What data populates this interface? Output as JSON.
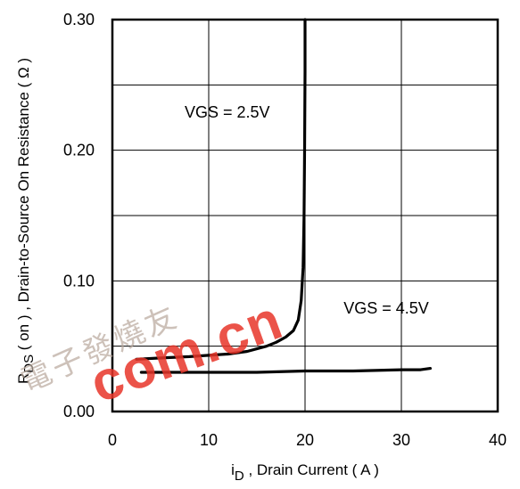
{
  "chart_data": {
    "type": "line",
    "xlabel_main": "i",
    "xlabel_sub": "D",
    "xlabel_rest": " , Drain Current ( A )",
    "ylabel_main": "R",
    "ylabel_sub": "DS",
    "ylabel_rest": " ( on ) , Drain-to-Source On Resistance ( Ω )",
    "xlim": [
      0,
      40
    ],
    "ylim": [
      0,
      0.3
    ],
    "x_ticks": [
      "0",
      "10",
      "20",
      "30",
      "40"
    ],
    "x_tick_values": [
      0,
      10,
      20,
      30,
      40
    ],
    "y_ticks": [
      "0.00",
      "0.10",
      "0.20",
      "0.30"
    ],
    "y_tick_values": [
      0,
      0.1,
      0.2,
      0.3
    ],
    "grid": true,
    "series": [
      {
        "name": "VGS = 2.5V",
        "x": [
          2.5,
          5,
          8,
          10,
          12,
          14,
          16,
          17,
          18,
          18.8,
          19.3,
          19.6,
          19.8,
          19.9,
          19.95,
          20,
          20
        ],
        "y": [
          0.04,
          0.041,
          0.042,
          0.043,
          0.044,
          0.046,
          0.05,
          0.053,
          0.057,
          0.062,
          0.07,
          0.085,
          0.11,
          0.15,
          0.2,
          0.26,
          0.3
        ]
      },
      {
        "name": "VGS = 4.5V",
        "x": [
          3,
          5,
          10,
          15,
          20,
          25,
          30,
          32,
          33
        ],
        "y": [
          0.03,
          0.03,
          0.03,
          0.03,
          0.031,
          0.031,
          0.032,
          0.032,
          0.033
        ]
      }
    ],
    "annotations": [
      {
        "text": "VGS = 2.5V",
        "x": 7.5,
        "y": 0.225
      },
      {
        "text": "VGS = 4.5V",
        "x": 24,
        "y": 0.075
      }
    ],
    "colors": {
      "line": "#000000",
      "grid": "#000000"
    }
  },
  "watermark": {
    "text": "com.cn",
    "seal_text": "電子發燒友",
    "color": "#e8362a"
  }
}
